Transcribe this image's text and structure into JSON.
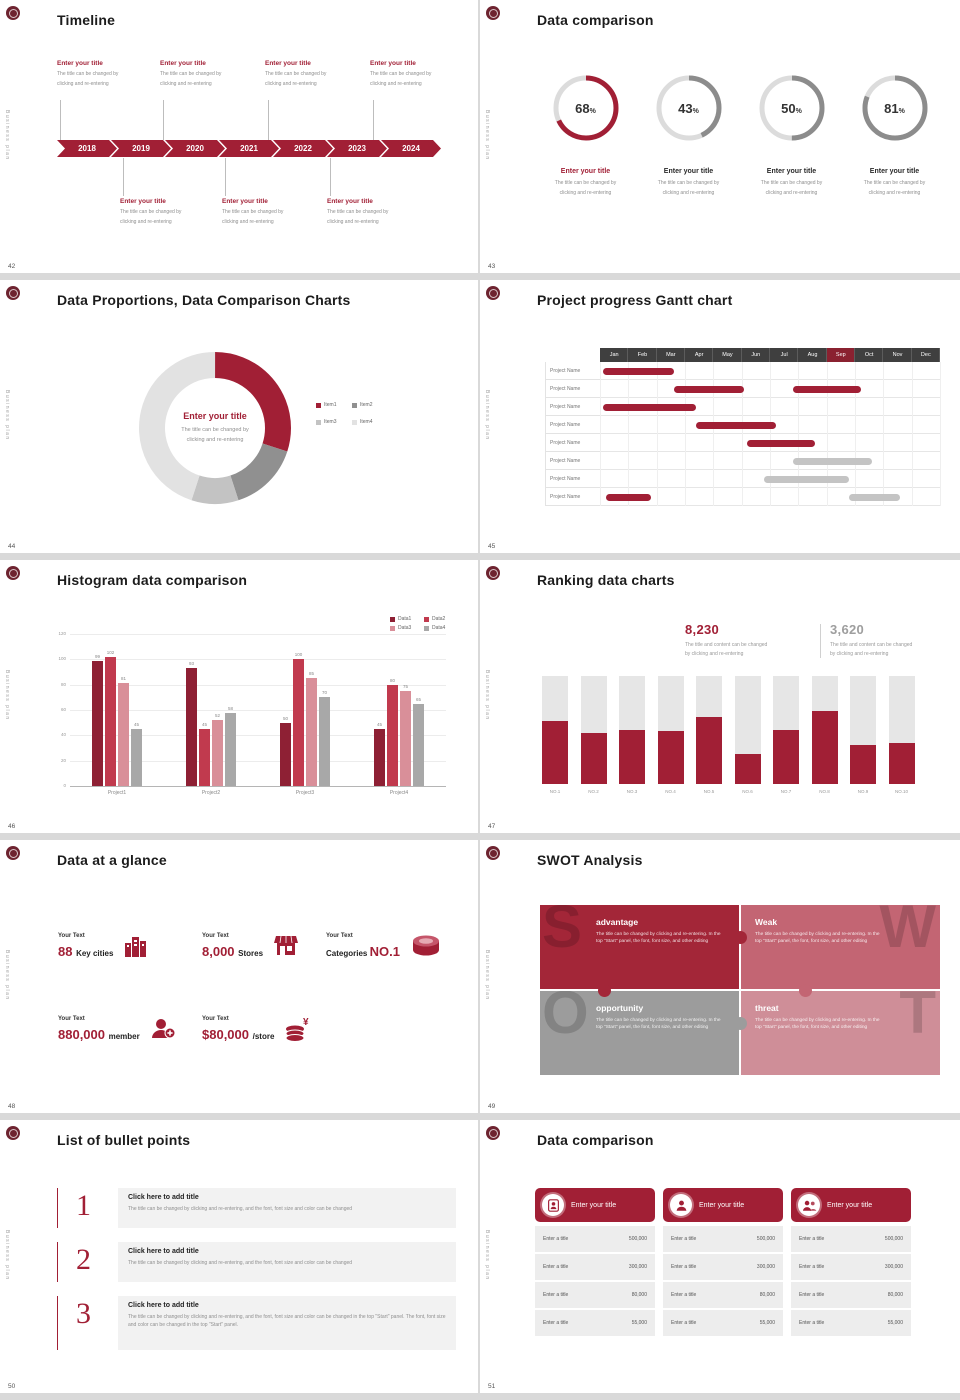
{
  "chrome": {
    "side_text": "Business plan",
    "accent": "#a11f35",
    "gray_ring": "#8c8c8c"
  },
  "slides": {
    "timeline": {
      "page": "42",
      "title": "Timeline",
      "years": [
        "2018",
        "2019",
        "2020",
        "2021",
        "2022",
        "2023",
        "2024"
      ],
      "top_entries": [
        {
          "title": "Enter your title",
          "desc": [
            "The title can be changed by",
            "clicking and re-entering"
          ]
        },
        {
          "title": "Enter your title",
          "desc": [
            "The title can be changed by",
            "clicking and re-entering"
          ]
        },
        {
          "title": "Enter your title",
          "desc": [
            "The title can be changed by",
            "clicking and re-entering"
          ]
        },
        {
          "title": "Enter your title",
          "desc": [
            "The title can be changed by",
            "clicking and re-entering"
          ]
        }
      ],
      "bottom_entries": [
        {
          "title": "Enter your title",
          "desc": [
            "The title can be changed by",
            "clicking and re-entering"
          ]
        },
        {
          "title": "Enter your title",
          "desc": [
            "The title can be changed by",
            "clicking and re-entering"
          ]
        },
        {
          "title": "Enter your title",
          "desc": [
            "The title can be changed by",
            "clicking and re-entering"
          ]
        }
      ]
    },
    "donuts": {
      "page": "43",
      "title": "Data comparison",
      "chart_data": {
        "type": "pie",
        "items": [
          {
            "percent": 68,
            "accent": true,
            "title": "Enter your title",
            "desc": [
              "The title can be changed by",
              "clicking and re-entering"
            ]
          },
          {
            "percent": 43,
            "accent": false,
            "title": "Enter your title",
            "desc": [
              "The title can be changed by",
              "clicking and re-entering"
            ]
          },
          {
            "percent": 50,
            "accent": false,
            "title": "Enter your title",
            "desc": [
              "The title can be changed by",
              "clicking and re-entering"
            ]
          },
          {
            "percent": 81,
            "accent": false,
            "title": "Enter your title",
            "desc": [
              "The title can be changed by",
              "clicking and re-entering"
            ]
          }
        ]
      }
    },
    "proportions": {
      "page": "44",
      "title": "Data Proportions, Data Comparison Charts",
      "center_title": "Enter your title",
      "center_desc": [
        "The title can be changed by",
        "clicking and re-entering"
      ],
      "chart_data": {
        "type": "pie",
        "labels": [
          "Item1",
          "Item2",
          "Item3",
          "Item4"
        ],
        "values": [
          30,
          15,
          10,
          45
        ],
        "colors": [
          "#a11f35",
          "#909090",
          "#c3c3c3",
          "#e2e2e2"
        ]
      }
    },
    "gantt": {
      "page": "45",
      "title": "Project progress Gantt chart",
      "row_label": "Project Name",
      "rows": 8,
      "highlight_month": "Sep",
      "months": [
        "Jan",
        "Feb",
        "Mar",
        "Apr",
        "May",
        "Jun",
        "Jul",
        "Aug",
        "Sep",
        "Oct",
        "Nov",
        "Dec"
      ],
      "chart_data": {
        "type": "table",
        "bars": [
          {
            "row": 0,
            "start": 0.1,
            "end": 2.6,
            "color": "red"
          },
          {
            "row": 1,
            "start": 2.6,
            "end": 5.1,
            "color": "red"
          },
          {
            "row": 1,
            "start": 6.8,
            "end": 9.2,
            "color": "red"
          },
          {
            "row": 2,
            "start": 0.1,
            "end": 3.4,
            "color": "red"
          },
          {
            "row": 3,
            "start": 3.4,
            "end": 6.2,
            "color": "red"
          },
          {
            "row": 4,
            "start": 5.2,
            "end": 7.6,
            "color": "red"
          },
          {
            "row": 5,
            "start": 6.8,
            "end": 9.6,
            "color": "gray"
          },
          {
            "row": 6,
            "start": 5.8,
            "end": 8.8,
            "color": "gray"
          },
          {
            "row": 7,
            "start": 0.2,
            "end": 1.8,
            "color": "red"
          },
          {
            "row": 7,
            "start": 8.8,
            "end": 10.6,
            "color": "gray"
          }
        ]
      }
    },
    "histogram": {
      "page": "46",
      "title": "Histogram data comparison",
      "chart_data": {
        "type": "bar",
        "categories": [
          "Project1",
          "Project2",
          "Project3",
          "Project4"
        ],
        "series": [
          {
            "name": "Data1",
            "values": [
              99,
              93,
              50,
              45
            ],
            "color": "#8e2034"
          },
          {
            "name": "Data2",
            "values": [
              102,
              45,
              100,
              80
            ],
            "color": "#c13a4e"
          },
          {
            "name": "Data3",
            "values": [
              81,
              52,
              85,
              75
            ],
            "color": "#d98f99"
          },
          {
            "name": "Data4",
            "values": [
              45,
              58,
              70,
              65
            ],
            "color": "#a8a8a8"
          }
        ],
        "ylim": [
          0,
          120
        ],
        "yticks": [
          0,
          20,
          40,
          60,
          80,
          100,
          120
        ],
        "legend_position": "top-right",
        "grid": true
      }
    },
    "ranking": {
      "page": "47",
      "title": "Ranking data charts",
      "stat1": {
        "value": "8,230",
        "desc": [
          "The title and content can be changed",
          "by clicking and re-entering"
        ]
      },
      "stat2": {
        "value": "3,620",
        "desc": [
          "The title and content can be changed",
          "by clicking and re-entering"
        ]
      },
      "chart_data": {
        "type": "bar",
        "categories": [
          "NO.1",
          "NO.2",
          "NO.3",
          "NO.4",
          "NO.5",
          "NO.6",
          "NO.7",
          "NO.8",
          "NO.9",
          "NO.10"
        ],
        "values": [
          58,
          47,
          50,
          49,
          62,
          28,
          50,
          68,
          36,
          38
        ],
        "ylim": [
          0,
          100
        ]
      }
    },
    "glance": {
      "page": "48",
      "title": "Data at a glance",
      "items": [
        {
          "label": "Your Text",
          "value": "88",
          "unit": "Key cities",
          "unit_first": false,
          "icon": "city-icon"
        },
        {
          "label": "Your Text",
          "value": "8,000",
          "unit": "Stores",
          "unit_first": false,
          "icon": "store-icon"
        },
        {
          "label": "Your Text",
          "value": "NO.1",
          "unit": "Categories",
          "unit_first": true,
          "icon": "categories-icon"
        },
        {
          "label": "Your Text",
          "value": "880,000",
          "unit": "member",
          "unit_first": false,
          "icon": "member-icon"
        },
        {
          "label": "Your Text",
          "value": "$80,000",
          "unit": "/store",
          "unit_first": false,
          "icon": "coins-icon"
        }
      ]
    },
    "swot": {
      "page": "49",
      "title": "SWOT Analysis",
      "quads": [
        {
          "letter": "S",
          "title": "advantage",
          "color": "#a32638",
          "desc": "The title can be changed by clicking and re-entering. In the top \"Start\" panel, the font, font size, and other editing"
        },
        {
          "letter": "W",
          "title": "Weak",
          "color": "#c36573",
          "desc": "The title can be changed by clicking and re-entering. In the top \"Start\" panel, the font, font size, and other editing"
        },
        {
          "letter": "O",
          "title": "opportunity",
          "color": "#9c9c9c",
          "desc": "The title can be changed by clicking and re-entering. In the top \"Start\" panel, the font, font size, and other editing"
        },
        {
          "letter": "T",
          "title": "threat",
          "color": "#cf8e98",
          "desc": "The title can be changed by clicking and re-entering. In the top \"Start\" panel, the font, font size, and other editing"
        }
      ]
    },
    "bullets": {
      "page": "50",
      "title": "List of bullet points",
      "items": [
        {
          "num": "1",
          "title": "Click here to add title",
          "desc": "The title can be changed by clicking and re-entering, and the font, font size and color can be changed"
        },
        {
          "num": "2",
          "title": "Click here to add title",
          "desc": "The title can be changed by clicking and re-entering, and the font, font size and color can be changed"
        },
        {
          "num": "3",
          "title": "Click here to add title",
          "desc": "The title can be changed by clicking and re-entering, and the font, font size and color can be changed in the top \"Start\" panel. The font, font size and color can be changed in the top \"Start\" panel."
        }
      ]
    },
    "cards": {
      "page": "51",
      "title": "Data comparison",
      "cards": [
        {
          "icon": "person-badge-icon",
          "title": "Enter your title",
          "rows": [
            [
              "Enter a title",
              "500,000"
            ],
            [
              "Enter a title",
              "300,000"
            ],
            [
              "Enter a title",
              "80,000"
            ],
            [
              "Enter a title",
              "55,000"
            ]
          ]
        },
        {
          "icon": "person-icon",
          "title": "Enter your title",
          "rows": [
            [
              "Enter a title",
              "500,000"
            ],
            [
              "Enter a title",
              "300,000"
            ],
            [
              "Enter a title",
              "80,000"
            ],
            [
              "Enter a title",
              "55,000"
            ]
          ]
        },
        {
          "icon": "people-icon",
          "title": "Enter your title",
          "rows": [
            [
              "Enter a title",
              "500,000"
            ],
            [
              "Enter a title",
              "300,000"
            ],
            [
              "Enter a title",
              "80,000"
            ],
            [
              "Enter a title",
              "55,000"
            ]
          ]
        }
      ]
    }
  }
}
